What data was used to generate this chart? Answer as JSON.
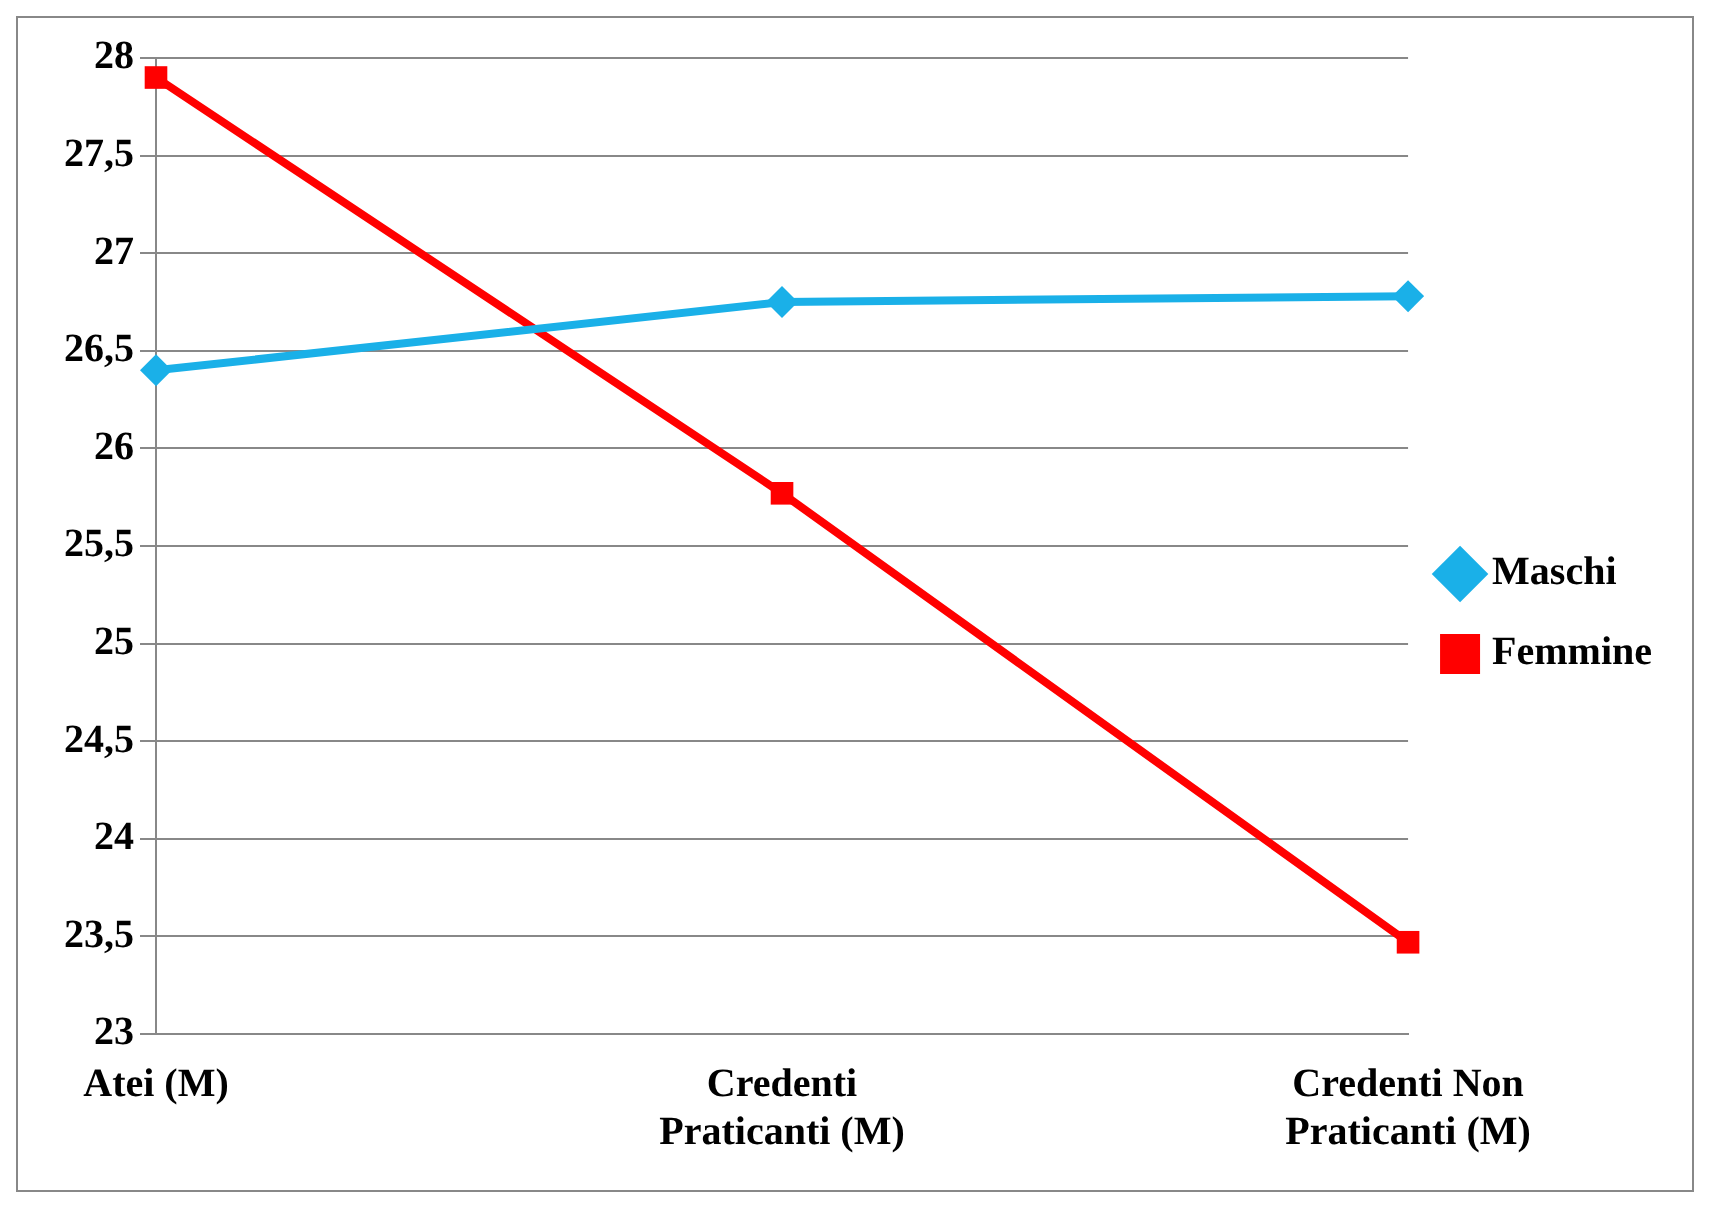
{
  "chart_data": {
    "type": "line",
    "categories": [
      "Atei (M)",
      "Credenti Praticanti (M)",
      "Credenti Non Praticanti (M)"
    ],
    "series": [
      {
        "name": "Maschi",
        "color": "#1ab0e8",
        "values": [
          26.4,
          26.75,
          26.78
        ],
        "marker": "diamond"
      },
      {
        "name": "Femmine",
        "color": "#ff0000",
        "values": [
          27.9,
          25.77,
          23.47
        ],
        "marker": "square"
      }
    ],
    "ylim": [
      23,
      28
    ],
    "yticks": [
      23,
      {
        "value": 23.5,
        "label": "23,5"
      },
      24,
      {
        "value": 24.5,
        "label": "24,5"
      },
      25,
      {
        "value": 25.5,
        "label": "25,5"
      },
      26,
      {
        "value": 26.5,
        "label": "26,5"
      },
      27,
      {
        "value": 27.5,
        "label": "27,5"
      },
      28
    ],
    "grid": "y",
    "legend": "right",
    "line_style": "solid"
  }
}
